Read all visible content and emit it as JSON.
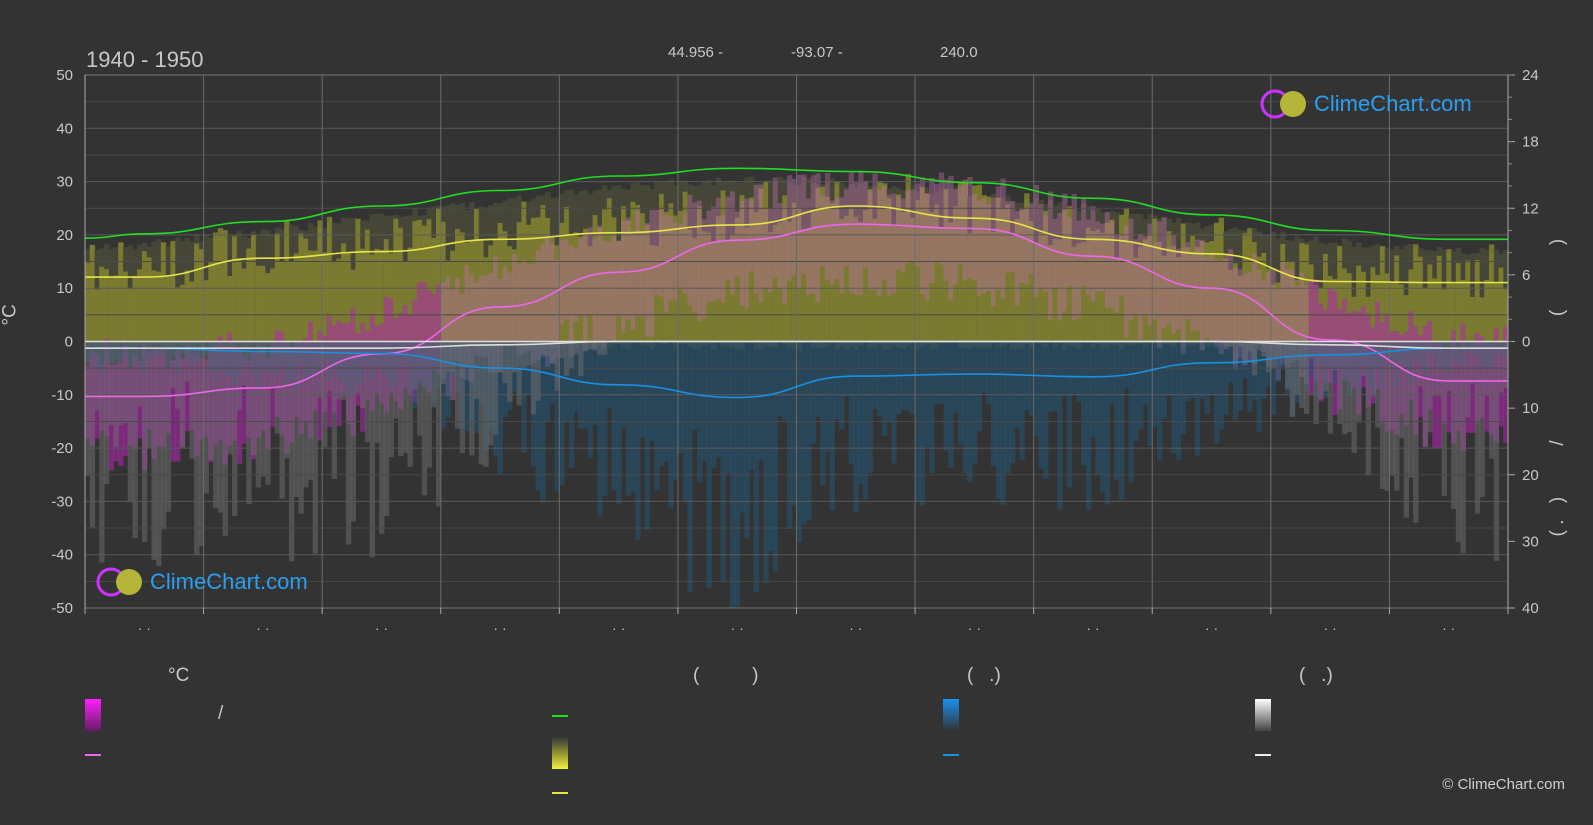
{
  "header": {
    "period": "1940 - 1950",
    "lat": "44.956 -",
    "lon": "-93.07 -",
    "elev": "240.0"
  },
  "logo": {
    "text": "ClimeChart.com"
  },
  "copyright": "© ClimeChart.com",
  "left_axis": {
    "unit": "°C",
    "ticks": [
      "50",
      "40",
      "30",
      "20",
      "10",
      "0",
      "-10",
      "-20",
      "-30",
      "-40",
      "-50"
    ]
  },
  "right_axis": {
    "top_ticks": [
      "24",
      "18",
      "12",
      "6",
      "0"
    ],
    "bottom_ticks": [
      "10",
      "20",
      "30",
      "40"
    ],
    "label_top_1": ")",
    "label_top_2": "(",
    "label_top_3": ")",
    "label_bottom_1": "/",
    "label_bottom_2": ")",
    "label_bottom_3": "( .",
    "label_bottom_paren": "("
  },
  "x_axis": {
    "ticks": [
      "· ·",
      "· ·",
      "· ·",
      "· ·",
      "· ·",
      "· ·",
      "· ·",
      "· ·",
      "· ·",
      "· ·",
      "· ·",
      "· ·"
    ]
  },
  "legend": {
    "col1": {
      "title": "°C",
      "slash": "/"
    },
    "col2": {
      "title": "(          )"
    },
    "col3": {
      "title": "(   .)"
    },
    "col4": {
      "title": "(   .)"
    }
  },
  "colors": {
    "background": "#333333",
    "grid": "#5a5a5a",
    "daylight": "#22dd22",
    "sunshine": "#e6e64a",
    "temp_mean": "#ee66ee",
    "temp_band": "#cc22cc",
    "precip": "#1a90e0",
    "snow": "#dddddd"
  },
  "chart_data": {
    "type": "line",
    "xlim": [
      0,
      12
    ],
    "ylim_left": [
      -50,
      50
    ],
    "right_axis_top": {
      "range": [
        0,
        24
      ],
      "unit": "hours"
    },
    "right_axis_bottom": {
      "range": [
        0,
        40
      ],
      "unit": "mm"
    },
    "x": [
      0,
      0.5,
      1.5,
      2.5,
      3.5,
      4.5,
      5.5,
      6.5,
      7.5,
      8.5,
      9.5,
      10.5,
      11.5,
      12
    ],
    "series": [
      {
        "key": "daylight",
        "axis": "hours",
        "values": [
          9.3,
          9.7,
          10.8,
          12.2,
          13.6,
          14.9,
          15.6,
          15.3,
          14.3,
          12.9,
          11.4,
          10.0,
          9.2,
          9.2
        ]
      },
      {
        "key": "sunshine",
        "axis": "hours",
        "values": [
          5.8,
          5.8,
          7.5,
          8.1,
          9.2,
          9.8,
          10.5,
          12.2,
          11.1,
          9.2,
          7.9,
          5.4,
          5.3,
          5.3
        ]
      },
      {
        "key": "temp_mean",
        "axis": "celsius",
        "values": [
          -10.3,
          -10.3,
          -8.7,
          -2.3,
          6.5,
          13.0,
          19.0,
          22.0,
          21.2,
          16.0,
          10.0,
          0.3,
          -7.4,
          -7.4
        ]
      },
      {
        "key": "precip",
        "axis": "mm",
        "values": [
          1.0,
          1.0,
          1.5,
          1.8,
          4.0,
          6.5,
          8.4,
          5.2,
          4.9,
          5.3,
          3.2,
          2.0,
          1.0,
          1.0
        ]
      },
      {
        "key": "snow",
        "axis": "mm",
        "values": [
          1.0,
          1.0,
          1.0,
          1.0,
          0.5,
          0.0,
          0.0,
          0.0,
          0.0,
          0.0,
          0.0,
          0.5,
          1.0,
          1.0
        ]
      }
    ],
    "grid": true
  }
}
